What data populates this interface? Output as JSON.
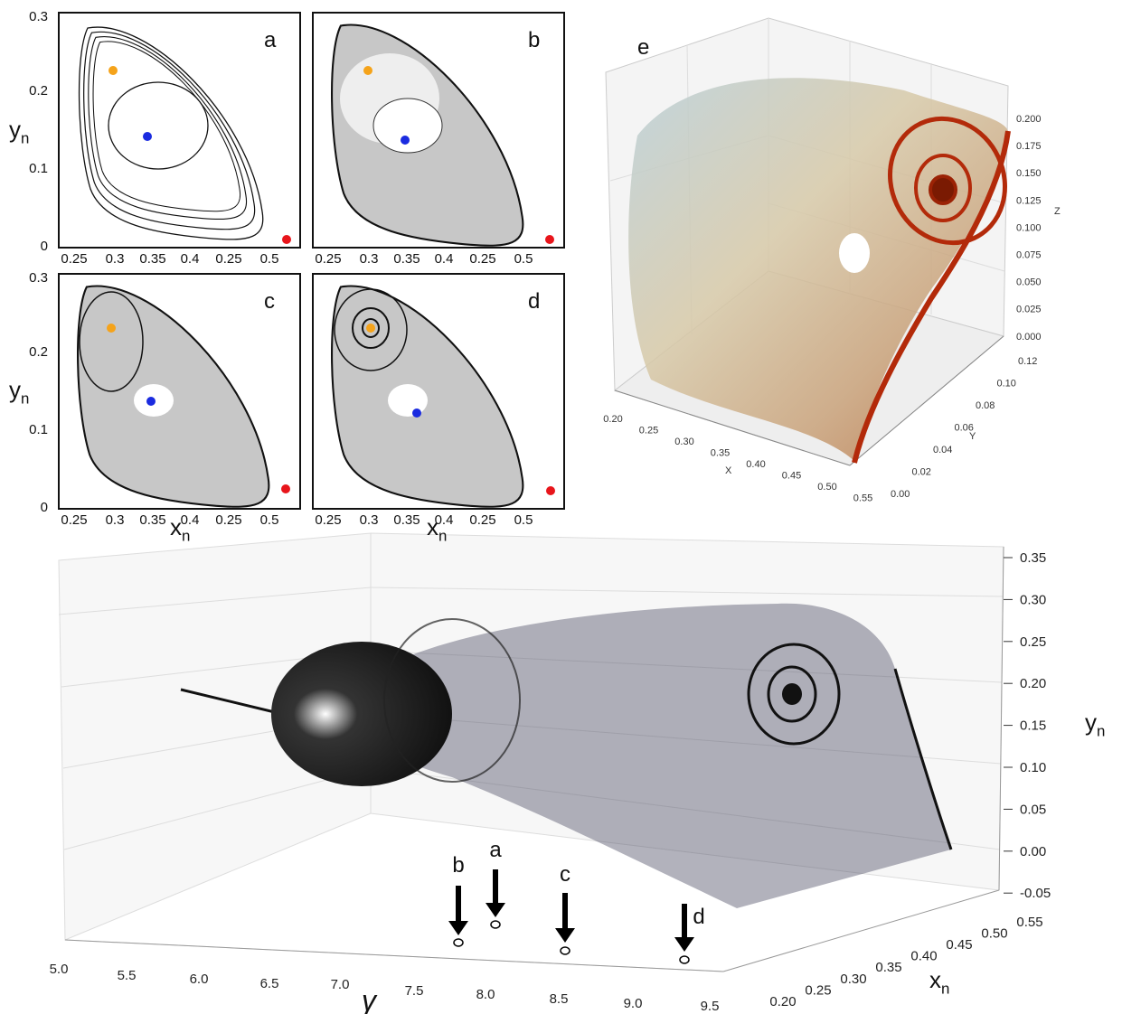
{
  "panels": [
    {
      "letter": "a",
      "xticks": [
        "0.25",
        "0.3",
        "0.35",
        "0.4",
        "0.25",
        "0.5"
      ],
      "yticks": [
        "0.3",
        "0.2",
        "0.1",
        "0"
      ]
    },
    {
      "letter": "b",
      "xticks": [
        "0.25",
        "0.3",
        "0.35",
        "0.4",
        "0.25",
        "0.5"
      ]
    },
    {
      "letter": "c",
      "xticks": [
        "0.25",
        "0.3",
        "0.35",
        "0.4",
        "0.25",
        "0.5"
      ],
      "yticks": [
        "0.3",
        "0.2",
        "0.1",
        "0"
      ]
    },
    {
      "letter": "d",
      "xticks": [
        "0.25",
        "0.3",
        "0.35",
        "0.4",
        "0.25",
        "0.5"
      ]
    }
  ],
  "axis_labels_2d": {
    "y": {
      "main": "y",
      "sub": "n"
    },
    "x": {
      "main": "x",
      "sub": "n"
    }
  },
  "panel_e": {
    "letter": "e",
    "x_label": "X",
    "y_label": "Y",
    "z_label": "Z",
    "xticks": [
      "0.20",
      "0.25",
      "0.30",
      "0.35",
      "0.40",
      "0.45",
      "0.50",
      "0.55"
    ],
    "yticks": [
      "0.00",
      "0.02",
      "0.04",
      "0.06",
      "0.08",
      "0.10",
      "0.12"
    ],
    "zticks": [
      "0.200",
      "0.175",
      "0.150",
      "0.125",
      "0.100",
      "0.075",
      "0.050",
      "0.025",
      "0.000"
    ]
  },
  "bifurcation": {
    "gamma_label": "γ",
    "gamma_ticks": [
      "5.0",
      "5.5",
      "6.0",
      "6.5",
      "7.0",
      "7.5",
      "8.0",
      "8.5",
      "9.0",
      "9.5"
    ],
    "xn_label": {
      "main": "x",
      "sub": "n"
    },
    "xn_ticks": [
      "0.20",
      "0.25",
      "0.30",
      "0.35",
      "0.40",
      "0.45",
      "0.50",
      "0.55"
    ],
    "yn_label": {
      "main": "y",
      "sub": "n"
    },
    "yn_ticks": [
      "0.35",
      "0.30",
      "0.25",
      "0.20",
      "0.15",
      "0.10",
      "0.05",
      "0.00",
      "-0.05"
    ],
    "markers": [
      "b",
      "a",
      "c",
      "d"
    ]
  }
}
